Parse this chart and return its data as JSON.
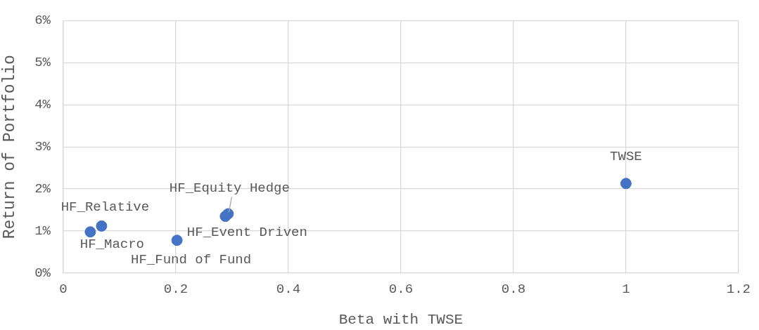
{
  "chart_data": {
    "type": "scatter",
    "xlabel": "Beta with TWSE",
    "ylabel": "Return of Portfolio",
    "xlim": [
      0,
      1.2
    ],
    "xticks": [
      0,
      0.2,
      0.4,
      0.6,
      0.8,
      1,
      1.2
    ],
    "ylim": [
      0,
      6
    ],
    "yticks": [
      {
        "value": 0,
        "label": "0%"
      },
      {
        "value": 1,
        "label": "1%"
      },
      {
        "value": 2,
        "label": "2%"
      },
      {
        "value": 3,
        "label": "3%"
      },
      {
        "value": 4,
        "label": "4%"
      },
      {
        "value": 5,
        "label": "5%"
      },
      {
        "value": 6,
        "label": "6%"
      }
    ],
    "grid": true,
    "legend": false,
    "marker": "circle",
    "series": [
      {
        "name": "HF_Relative",
        "color": "#4472c4",
        "x": [
          0.068
        ],
        "values": [
          1.12
        ]
      },
      {
        "name": "HF_Macro",
        "color": "#4472c4",
        "x": [
          0.048
        ],
        "values": [
          0.98
        ]
      },
      {
        "name": "HF_Fund of Fund",
        "color": "#4472c4",
        "x": [
          0.202
        ],
        "values": [
          0.78
        ]
      },
      {
        "name": "HF_Event Driven",
        "color": "#4472c4",
        "x": [
          0.288
        ],
        "values": [
          1.35
        ]
      },
      {
        "name": "HF_Equity Hedge",
        "color": "#4472c4",
        "x": [
          0.293
        ],
        "values": [
          1.41
        ]
      },
      {
        "name": "TWSE",
        "color": "#4472c4",
        "x": [
          1.0
        ],
        "values": [
          2.13
        ]
      }
    ]
  }
}
